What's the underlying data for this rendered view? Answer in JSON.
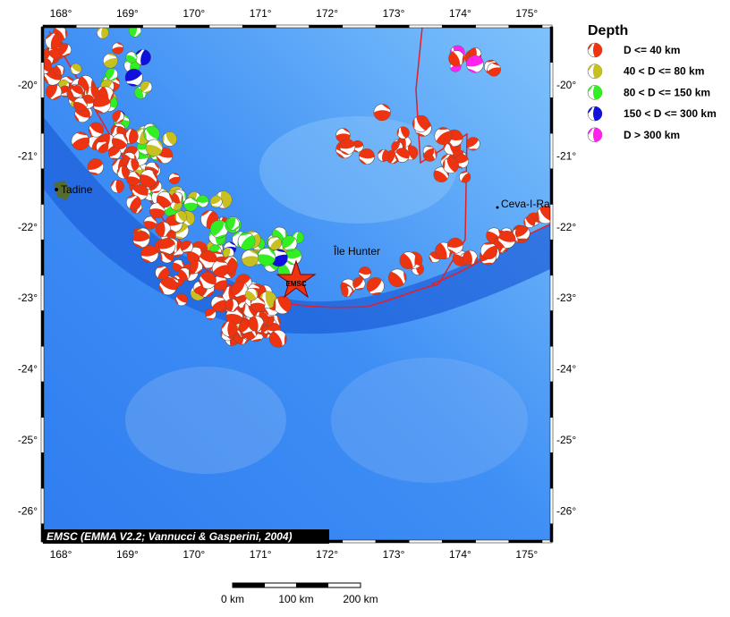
{
  "legend": {
    "title": "Depth",
    "entries": [
      {
        "label": "D <= 40 km",
        "color": "#ee3311"
      },
      {
        "label": "40 < D <= 80 km",
        "color": "#c8c020"
      },
      {
        "label": "80 < D <= 150 km",
        "color": "#33ee22"
      },
      {
        "label": "150 < D <= 300 km",
        "color": "#1010dd"
      },
      {
        "label": "D > 300 km",
        "color": "#ff22ee"
      }
    ]
  },
  "axes": {
    "lon_ticks": [
      "168°",
      "169°",
      "170°",
      "171°",
      "172°",
      "173°",
      "174°",
      "175°"
    ],
    "lat_ticks": [
      "-20°",
      "-21°",
      "-22°",
      "-23°",
      "-24°",
      "-25°",
      "-26°"
    ]
  },
  "places": {
    "tadine": "Tadine",
    "hunter": "Île Hunter",
    "ceva": "Ceva-I-Ra",
    "emsc": "EMSC"
  },
  "credit": "EMSC (EMMA V2.2; Vannucci & Gasperini, 2004)",
  "scale": [
    "0 km",
    "100 km",
    "200 km"
  ]
}
